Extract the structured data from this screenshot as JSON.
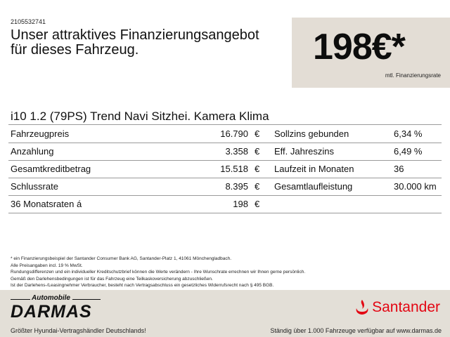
{
  "offer_id": "2105532741",
  "headline": [
    "Unser attraktives Finanzierungsangebot",
    "für dieses Fahrzeug."
  ],
  "rate_box": {
    "amount": "198€*",
    "caption": "mtl. Finanzierungsrate"
  },
  "model": "i10 1.2 (79PS) Trend Navi Sitzhei. Kamera Klima",
  "rows": [
    {
      "label": "Fahrzeugpreis",
      "value": "16.790",
      "currency": "€",
      "label2": "Sollzins gebunden",
      "value2": "6,34 %"
    },
    {
      "label": "Anzahlung",
      "value": "3.358",
      "currency": "€",
      "label2": "Eff. Jahreszins",
      "value2": "6,49 %"
    },
    {
      "label": "Gesamtkreditbetrag",
      "value": "15.518",
      "currency": "€",
      "label2": "Laufzeit in Monaten",
      "value2": "36"
    },
    {
      "label": "Schlussrate",
      "value": "8.395",
      "currency": "€",
      "label2": "Gesamtlaufleistung",
      "value2": "30.000 km"
    },
    {
      "label": "36 Monatsraten á",
      "value": "198",
      "currency": "€",
      "label2": "",
      "value2": ""
    }
  ],
  "notes": [
    "* ein Finanzierungsbeispiel der Santander Consumer Bank AG, Santander-Platz 1, 41061 Mönchengladbach.",
    "Alle Preisangaben incl. 19 % MwSt.",
    "Rundungsdifferenzen und ein individueller Kreditschutzbrief können die Werte verändern - Ihre Wunschrate errechnen wir Ihnen gerne persönlich.",
    "Gemäß den Darlehensbedingungen ist für das Fahrzeug eine Teilkaskoversicherung abzuschließen.",
    "Ist der Darlehens-/Leasingnehmer Verbraucher, besteht nach Vertragsabschluss ein gesetzliches Widerrufsrecht nach § 495 BGB."
  ],
  "footer": {
    "dealer_logo": {
      "small": "Automobile",
      "big": "DARMAS"
    },
    "bank_logo": "Santander",
    "left_text": "Größter Hyundai-Vertragshändler Deutschlands!",
    "right_text": "Ständig über 1.000 Fahrzeuge verfügbar auf www.darmas.de"
  },
  "colors": {
    "box_bg": "#e3ddd5",
    "footer_bg": "#e3dfd7",
    "santander_red": "#e30613"
  }
}
